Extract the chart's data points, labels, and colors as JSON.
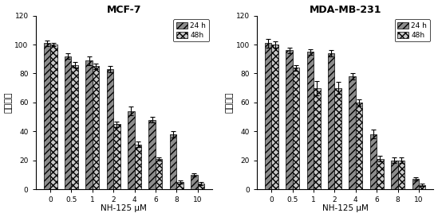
{
  "categories": [
    "0",
    "0.5",
    "1",
    "2",
    "4",
    "6",
    "8",
    "10"
  ],
  "mcf7": {
    "title": "MCF-7",
    "h24": [
      101,
      92,
      89,
      83,
      54,
      48,
      38,
      10
    ],
    "h48": [
      100,
      86,
      85,
      45,
      31,
      21,
      5,
      4
    ],
    "h24_err": [
      2,
      2,
      3,
      2,
      3,
      2,
      2,
      1
    ],
    "h48_err": [
      1,
      2,
      2,
      2,
      2,
      1,
      1,
      1
    ]
  },
  "mda": {
    "title": "MDA-MB-231",
    "h24": [
      101,
      96,
      95,
      94,
      78,
      38,
      20,
      7
    ],
    "h48": [
      100,
      84,
      70,
      70,
      60,
      21,
      20,
      3
    ],
    "h24_err": [
      3,
      2,
      2,
      2,
      2,
      3,
      2,
      1
    ],
    "h48_err": [
      2,
      2,
      5,
      4,
      2,
      2,
      2,
      1
    ]
  },
  "ylabel": "细胞活性",
  "xlabel": "NH-125 μM",
  "ylim": [
    0,
    120
  ],
  "yticks": [
    0,
    20,
    40,
    60,
    80,
    100,
    120
  ],
  "legend_24h": "24 h",
  "legend_48h": "48h",
  "bar_width": 0.32,
  "figsize": [
    5.49,
    2.73
  ],
  "dpi": 100
}
